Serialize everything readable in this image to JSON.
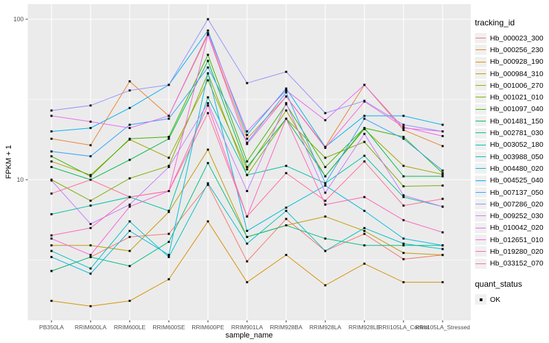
{
  "style": {
    "panel_bg": "#EBEBEB",
    "grid_color": "#FFFFFF",
    "tick_label_color": "#4D4D4D",
    "tick_mark_color": "#333333",
    "point_color": "#000000"
  },
  "axes": {
    "x_title": "sample_name",
    "y_title": "FPKM + 1",
    "y_tick_labels": [
      "100",
      "10"
    ]
  },
  "legend": {
    "series_title": "tracking_id",
    "shape_title": "quant_status",
    "shape_item_label": "OK",
    "shape_marker": "black-square-marker"
  },
  "chart_data": {
    "type": "line",
    "title": "",
    "xlabel": "sample_name",
    "ylabel": "FPKM + 1",
    "y_scale": "log10",
    "ylim": [
      1.3,
      125
    ],
    "y_major_ticks": [
      10,
      100
    ],
    "y_minor_ticks": [
      3.16,
      31.6
    ],
    "grid": true,
    "legend_position": "right",
    "categories": [
      "PB350LA",
      "RRIM600LA",
      "RRIM600LE",
      "RRIM600SE",
      "RRIM600PE",
      "RRIM901LA",
      "RRIM928BA",
      "RRIM928LA",
      "RRIM928LE",
      "RRII105LA_Control",
      "RRII105LA_Stressed"
    ],
    "series": [
      {
        "name": "Hb_000023_300",
        "color": "#F8766D",
        "values": [
          2.7,
          3.3,
          4.4,
          4.6,
          9.3,
          3.1,
          5.7,
          3.6,
          4.6,
          3.2,
          3.4
        ]
      },
      {
        "name": "Hb_000256_230",
        "color": "#EA8331",
        "values": [
          18,
          16.4,
          41,
          25,
          80,
          18,
          33,
          16,
          39,
          20.4,
          16.2
        ]
      },
      {
        "name": "Hb_000928_190",
        "color": "#D89000",
        "values": [
          1.76,
          1.63,
          1.76,
          2.4,
          5.5,
          2.3,
          3.4,
          2.2,
          3.0,
          2.3,
          2.3
        ]
      },
      {
        "name": "Hb_000984_310",
        "color": "#C09B00",
        "values": [
          3.9,
          3.9,
          3.6,
          6.3,
          15.4,
          4.4,
          5.2,
          5.9,
          4.8,
          3.5,
          3.4
        ]
      },
      {
        "name": "Hb_001006_270",
        "color": "#A3A500",
        "values": [
          13,
          10.7,
          17.8,
          13.7,
          41.6,
          11.6,
          27,
          10.5,
          20.7,
          12.2,
          10.8
        ]
      },
      {
        "name": "Hb_001021_010",
        "color": "#7CAE00",
        "values": [
          10,
          7.4,
          10.2,
          12.2,
          46,
          10.7,
          24,
          13.7,
          17.2,
          9.1,
          9.2
        ]
      },
      {
        "name": "Hb_001097_040",
        "color": "#39B600",
        "values": [
          14,
          10.5,
          18,
          18.5,
          60,
          13,
          29.5,
          12,
          21,
          18.5,
          11
        ]
      },
      {
        "name": "Hb_001481_150",
        "color": "#00BB4E",
        "values": [
          12,
          10,
          13.3,
          18,
          55,
          12,
          24,
          10.5,
          21,
          10.5,
          10.5
        ]
      },
      {
        "name": "Hb_002781_030",
        "color": "#00BF7D",
        "values": [
          2.7,
          3.3,
          2.9,
          4.1,
          12.7,
          4.4,
          5.2,
          4.3,
          3.9,
          3.9,
          3.9
        ]
      },
      {
        "name": "Hb_003052_180",
        "color": "#00C1A3",
        "values": [
          6.1,
          6.9,
          7.8,
          6.4,
          32.6,
          10.7,
          12.2,
          9.5,
          14.1,
          7.8,
          6.8
        ]
      },
      {
        "name": "Hb_003988_050",
        "color": "#00BFC4",
        "values": [
          3.6,
          2.8,
          5.5,
          3.3,
          9.5,
          4.0,
          6.4,
          3.6,
          5.0,
          4.0,
          3.7
        ]
      },
      {
        "name": "Hb_004480_020",
        "color": "#00BAE0",
        "values": [
          3.3,
          2.6,
          4.8,
          3.4,
          46,
          4.8,
          6.7,
          9.2,
          6.4,
          4.3,
          3.9
        ]
      },
      {
        "name": "Hb_004525_040",
        "color": "#00B0F6",
        "values": [
          20,
          21,
          28,
          39,
          85,
          19,
          37,
          16,
          25,
          25,
          22
        ]
      },
      {
        "name": "Hb_007137_050",
        "color": "#35A2FF",
        "values": [
          15,
          14,
          22,
          24,
          50,
          17,
          35,
          9.5,
          24,
          18,
          11.4
        ]
      },
      {
        "name": "Hb_007286_020",
        "color": "#9590FF",
        "values": [
          27,
          29,
          36,
          39,
          100,
          40,
          47,
          26,
          31,
          22,
          20
        ]
      },
      {
        "name": "Hb_009252_030",
        "color": "#C77CFF",
        "values": [
          9.9,
          5.3,
          7.0,
          12,
          30,
          8.5,
          30,
          8.3,
          19.3,
          8.0,
          6.8
        ]
      },
      {
        "name": "Hb_010042_020",
        "color": "#E76BF3",
        "values": [
          25,
          23,
          21,
          25,
          82,
          20,
          36,
          23.5,
          39,
          21,
          20
        ]
      },
      {
        "name": "Hb_012651_010",
        "color": "#FA62DB",
        "values": [
          4.3,
          3.4,
          6.8,
          8.5,
          80,
          16.7,
          33,
          15.8,
          30.7,
          21.3,
          18.7
        ]
      },
      {
        "name": "Hb_019280_020",
        "color": "#FF62BC",
        "values": [
          4.5,
          5.0,
          7.8,
          8.5,
          29,
          5.9,
          24,
          7.0,
          7.8,
          5.6,
          4.7
        ]
      },
      {
        "name": "Hb_033152_070",
        "color": "#FF6A98",
        "values": [
          8.2,
          10,
          7.8,
          8.5,
          26,
          5.9,
          11,
          7.4,
          13,
          6.9,
          7.6
        ]
      }
    ],
    "point_shape": "filled-square",
    "point_legend": {
      "title": "quant_status",
      "labels": [
        "OK"
      ]
    }
  }
}
